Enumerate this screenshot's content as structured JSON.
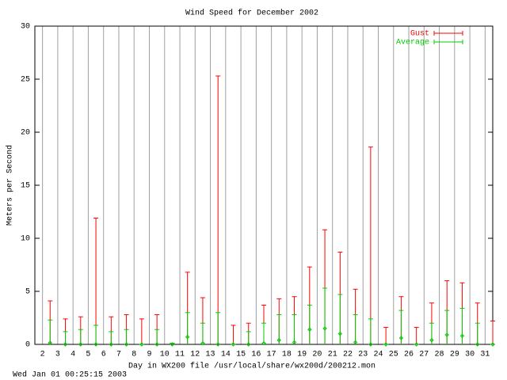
{
  "chart_data": {
    "type": "errorbar",
    "title": "Wind Speed for December 2002",
    "x_label": "Day in WX200 file /usr/local/share/wx200d/200212.mon",
    "y_label": "Meters per Second",
    "footer": "Wed Jan 01 00:25:15 2003",
    "x": [
      2.5,
      3.5,
      4.5,
      5.5,
      6.5,
      7.5,
      8.5,
      9.5,
      10.5,
      11.5,
      12.5,
      13.5,
      14.5,
      15.5,
      16.5,
      17.5,
      18.5,
      19.5,
      20.5,
      21.5,
      22.5,
      23.5,
      24.5,
      25.5,
      26.5,
      27.5,
      28.5,
      29.5,
      30.5,
      31.5
    ],
    "series": [
      {
        "name": "Gust",
        "color": "#ff0000",
        "values": [
          4.1,
          2.4,
          2.6,
          11.9,
          2.6,
          2.8,
          2.4,
          2.8,
          0.1,
          6.8,
          4.4,
          25.3,
          1.8,
          2.0,
          3.7,
          4.3,
          4.5,
          7.3,
          10.8,
          8.7,
          5.2,
          18.6,
          1.6,
          4.5,
          1.6,
          3.9,
          6.0,
          5.8,
          3.9,
          2.2
        ]
      },
      {
        "name": "Average",
        "color": "#00cc00",
        "values": [
          2.3,
          1.2,
          1.4,
          1.8,
          1.2,
          1.4,
          0,
          1.4,
          0.1,
          3.0,
          2.0,
          3.0,
          0,
          1.2,
          2.0,
          2.8,
          2.8,
          3.7,
          5.3,
          4.7,
          2.8,
          2.4,
          0,
          3.2,
          0,
          2.0,
          3.2,
          3.4,
          2.0,
          0
        ],
        "points": [
          0.15,
          0,
          0,
          0,
          0,
          0,
          0,
          0,
          0,
          0.7,
          0.1,
          0,
          0,
          0,
          0.1,
          0.4,
          0.2,
          1.4,
          1.5,
          1.0,
          0.2,
          0,
          0,
          0.6,
          0,
          0.4,
          0.9,
          0.8,
          0,
          0
        ]
      }
    ],
    "xlim": [
      1.5,
      31.5
    ],
    "ylim": [
      0,
      30
    ],
    "xticks": [
      2,
      3,
      4,
      5,
      6,
      7,
      8,
      9,
      10,
      11,
      12,
      13,
      14,
      15,
      16,
      17,
      18,
      19,
      20,
      21,
      22,
      23,
      24,
      25,
      26,
      27,
      28,
      29,
      30,
      31
    ],
    "yticks": [
      0,
      5,
      10,
      15,
      20,
      25,
      30
    ],
    "grid": "x",
    "legend": "top-right"
  }
}
